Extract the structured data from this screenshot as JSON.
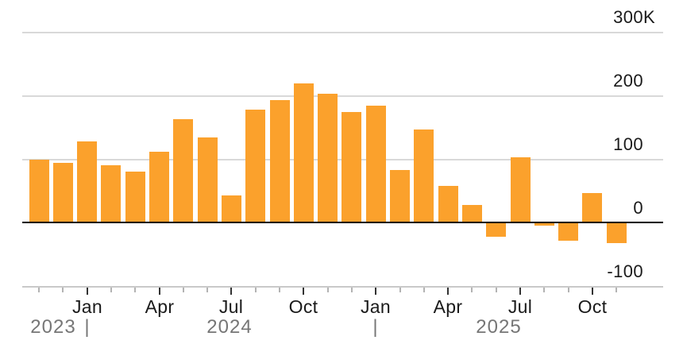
{
  "chart_data": {
    "type": "bar",
    "title": "",
    "x": [
      "Nov 2023",
      "Dec 2023",
      "Jan 2024",
      "Feb 2024",
      "Mar 2024",
      "Apr 2024",
      "May 2024",
      "Jun 2024",
      "Jul 2024",
      "Aug 2024",
      "Sep 2024",
      "Oct 2024",
      "Nov 2024",
      "Dec 2024",
      "Jan 2025",
      "Feb 2025",
      "Mar 2025",
      "Apr 2025",
      "May 2025",
      "Jun 2025",
      "Jul 2025",
      "Aug 2025",
      "Sep 2025",
      "Oct 2025",
      "Nov 2025"
    ],
    "values": [
      99,
      94,
      128,
      90,
      80,
      111,
      162,
      134,
      42,
      178,
      192,
      219,
      202,
      174,
      184,
      82,
      146,
      58,
      28,
      -22,
      102,
      -5,
      -29,
      46,
      -32
    ],
    "value_unit": "K",
    "ylim": [
      -100,
      300
    ],
    "grid": true,
    "legend": "none",
    "y_axis_side": "right",
    "y_ticks": [
      {
        "label": "300K",
        "value": 300
      },
      {
        "label": "200",
        "value": 200
      },
      {
        "label": "100",
        "value": 100
      },
      {
        "label": "0",
        "value": 0
      },
      {
        "label": "-100",
        "value": -100
      }
    ],
    "x_quarter_ticks": [
      {
        "label": "Jan",
        "index": 2
      },
      {
        "label": "Apr",
        "index": 5
      },
      {
        "label": "Jul",
        "index": 8
      },
      {
        "label": "Oct",
        "index": 11
      },
      {
        "label": "Jan",
        "index": 14
      },
      {
        "label": "Apr",
        "index": 17
      },
      {
        "label": "Jul",
        "index": 20
      },
      {
        "label": "Oct",
        "index": 23
      }
    ],
    "year_row": [
      {
        "label": "2023"
      },
      {
        "label": "|"
      },
      {
        "label": "2024"
      },
      {
        "label": "|"
      },
      {
        "label": "2025"
      }
    ],
    "colors": {
      "bar": "#FBA12C",
      "grid": "#d9d9d9",
      "zero_line": "#000000",
      "axis_line": "#c9c9c9",
      "tick_minor": "#b3b3b3",
      "tick_major": "#333333",
      "text_dark": "#1a1a1a",
      "text_gray": "#767676"
    }
  }
}
